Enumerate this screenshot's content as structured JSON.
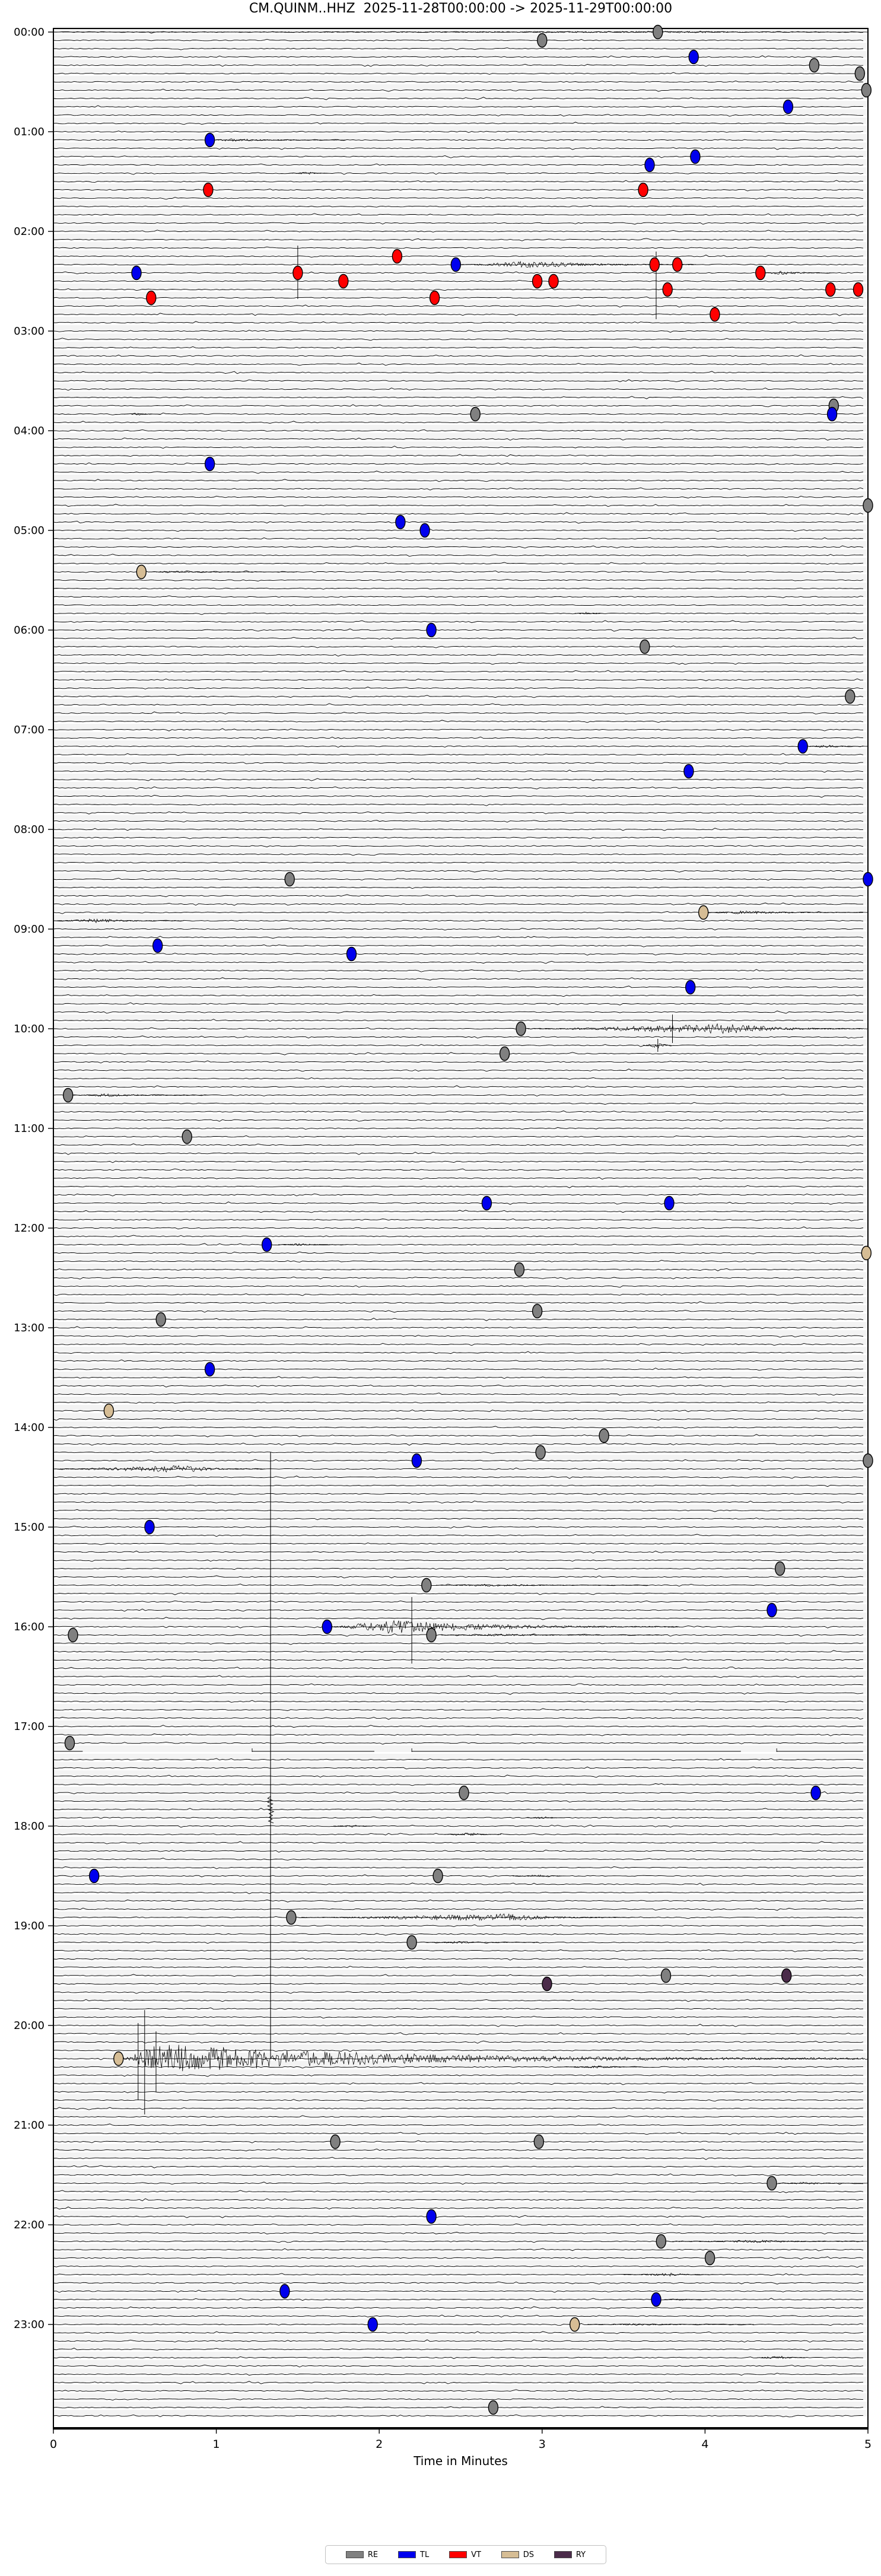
{
  "figure": {
    "title": "CM.QUINM..HHZ  2025-11-28T00:00:00 -> 2025-11-29T00:00:00",
    "xlabel": "Time in Minutes"
  },
  "axes": {
    "x_ticks": [
      "0",
      "1",
      "2",
      "3",
      "4",
      "5"
    ],
    "y_ticks": [
      "00:00",
      "01:00",
      "02:00",
      "03:00",
      "04:00",
      "05:00",
      "06:00",
      "07:00",
      "08:00",
      "09:00",
      "10:00",
      "11:00",
      "12:00",
      "13:00",
      "14:00",
      "15:00",
      "16:00",
      "17:00",
      "18:00",
      "19:00",
      "20:00",
      "21:00",
      "22:00",
      "23:00"
    ]
  },
  "legend": {
    "items": [
      {
        "label": "RE",
        "color": "#808080"
      },
      {
        "label": "TL",
        "color": "#0000ee"
      },
      {
        "label": "VT",
        "color": "#ff0000"
      },
      {
        "label": "DS",
        "color": "#d6bd95"
      },
      {
        "label": "RY",
        "color": "#4b2b4a"
      }
    ]
  },
  "chart_data": {
    "type": "helicorder",
    "station": "CM.QUINM..HHZ",
    "time_start": "2025-11-28T00:00:00",
    "time_end": "2025-11-29T00:00:00",
    "minutes_per_row": 5,
    "rows": 288,
    "x_range_minutes": [
      0,
      5
    ],
    "colors": {
      "RE": "#808080",
      "TL": "#0000ee",
      "VT": "#ff0000",
      "DS": "#d6bd95",
      "RY": "#4b2b4a"
    },
    "markers": [
      {
        "t": "00:00",
        "m": 3.71,
        "k": "RE"
      },
      {
        "t": "00:05",
        "m": 3.0,
        "k": "RE"
      },
      {
        "t": "00:15",
        "m": 3.93,
        "k": "TL"
      },
      {
        "t": "00:20",
        "m": 4.67,
        "k": "RE"
      },
      {
        "t": "00:25",
        "m": 4.95,
        "k": "RE"
      },
      {
        "t": "00:35",
        "m": 4.99,
        "k": "RE"
      },
      {
        "t": "00:45",
        "m": 4.51,
        "k": "TL"
      },
      {
        "t": "01:05",
        "m": 0.96,
        "k": "TL"
      },
      {
        "t": "01:15",
        "m": 3.94,
        "k": "TL"
      },
      {
        "t": "01:20",
        "m": 3.66,
        "k": "TL"
      },
      {
        "t": "01:35",
        "m": 0.95,
        "k": "VT"
      },
      {
        "t": "01:35",
        "m": 3.62,
        "k": "VT"
      },
      {
        "t": "02:15",
        "m": 2.11,
        "k": "VT"
      },
      {
        "t": "02:20",
        "m": 2.47,
        "k": "TL"
      },
      {
        "t": "02:20",
        "m": 3.69,
        "k": "VT"
      },
      {
        "t": "02:20",
        "m": 3.83,
        "k": "VT"
      },
      {
        "t": "02:25",
        "m": 0.51,
        "k": "TL"
      },
      {
        "t": "02:25",
        "m": 1.5,
        "k": "VT"
      },
      {
        "t": "02:25",
        "m": 4.34,
        "k": "VT"
      },
      {
        "t": "02:30",
        "m": 1.78,
        "k": "VT"
      },
      {
        "t": "02:30",
        "m": 2.97,
        "k": "VT"
      },
      {
        "t": "02:30",
        "m": 3.07,
        "k": "VT"
      },
      {
        "t": "02:35",
        "m": 3.77,
        "k": "VT"
      },
      {
        "t": "02:35",
        "m": 4.77,
        "k": "VT"
      },
      {
        "t": "02:35",
        "m": 4.94,
        "k": "VT"
      },
      {
        "t": "02:40",
        "m": 0.6,
        "k": "VT"
      },
      {
        "t": "02:40",
        "m": 2.34,
        "k": "VT"
      },
      {
        "t": "02:50",
        "m": 4.06,
        "k": "VT"
      },
      {
        "t": "03:45",
        "m": 4.79,
        "k": "RE"
      },
      {
        "t": "03:50",
        "m": 2.59,
        "k": "RE"
      },
      {
        "t": "03:50",
        "m": 4.78,
        "k": "TL"
      },
      {
        "t": "04:20",
        "m": 0.96,
        "k": "TL"
      },
      {
        "t": "04:45",
        "m": 5.0,
        "k": "RE"
      },
      {
        "t": "04:55",
        "m": 2.13,
        "k": "TL"
      },
      {
        "t": "05:00",
        "m": 2.28,
        "k": "TL"
      },
      {
        "t": "05:25",
        "m": 0.54,
        "k": "DS"
      },
      {
        "t": "06:00",
        "m": 2.32,
        "k": "TL"
      },
      {
        "t": "06:10",
        "m": 3.63,
        "k": "RE"
      },
      {
        "t": "06:40",
        "m": 4.89,
        "k": "RE"
      },
      {
        "t": "07:10",
        "m": 4.6,
        "k": "TL"
      },
      {
        "t": "07:25",
        "m": 3.9,
        "k": "TL"
      },
      {
        "t": "08:30",
        "m": 1.45,
        "k": "RE"
      },
      {
        "t": "08:30",
        "m": 5.0,
        "k": "TL"
      },
      {
        "t": "08:50",
        "m": 3.99,
        "k": "DS"
      },
      {
        "t": "09:10",
        "m": 0.64,
        "k": "TL"
      },
      {
        "t": "09:15",
        "m": 1.83,
        "k": "TL"
      },
      {
        "t": "09:35",
        "m": 3.91,
        "k": "TL"
      },
      {
        "t": "10:00",
        "m": 2.87,
        "k": "RE"
      },
      {
        "t": "10:15",
        "m": 2.77,
        "k": "RE"
      },
      {
        "t": "10:40",
        "m": 0.09,
        "k": "RE"
      },
      {
        "t": "11:05",
        "m": 0.82,
        "k": "RE"
      },
      {
        "t": "11:45",
        "m": 2.66,
        "k": "TL"
      },
      {
        "t": "11:45",
        "m": 3.78,
        "k": "TL"
      },
      {
        "t": "12:10",
        "m": 1.31,
        "k": "TL"
      },
      {
        "t": "12:15",
        "m": 4.99,
        "k": "DS"
      },
      {
        "t": "12:25",
        "m": 2.86,
        "k": "RE"
      },
      {
        "t": "12:50",
        "m": 2.97,
        "k": "RE"
      },
      {
        "t": "12:55",
        "m": 0.66,
        "k": "RE"
      },
      {
        "t": "13:25",
        "m": 0.96,
        "k": "TL"
      },
      {
        "t": "13:50",
        "m": 0.34,
        "k": "DS"
      },
      {
        "t": "14:05",
        "m": 3.38,
        "k": "RE"
      },
      {
        "t": "14:15",
        "m": 2.99,
        "k": "RE"
      },
      {
        "t": "14:20",
        "m": 2.23,
        "k": "TL"
      },
      {
        "t": "14:20",
        "m": 5.0,
        "k": "RE"
      },
      {
        "t": "15:00",
        "m": 0.59,
        "k": "TL"
      },
      {
        "t": "15:25",
        "m": 4.46,
        "k": "RE"
      },
      {
        "t": "15:35",
        "m": 2.29,
        "k": "RE"
      },
      {
        "t": "15:50",
        "m": 4.41,
        "k": "TL"
      },
      {
        "t": "16:00",
        "m": 1.68,
        "k": "TL"
      },
      {
        "t": "16:05",
        "m": 0.12,
        "k": "RE"
      },
      {
        "t": "16:05",
        "m": 2.32,
        "k": "RE"
      },
      {
        "t": "17:10",
        "m": 0.1,
        "k": "RE"
      },
      {
        "t": "17:40",
        "m": 2.52,
        "k": "RE"
      },
      {
        "t": "17:40",
        "m": 4.68,
        "k": "TL"
      },
      {
        "t": "18:30",
        "m": 0.25,
        "k": "TL"
      },
      {
        "t": "18:30",
        "m": 2.36,
        "k": "RE"
      },
      {
        "t": "18:55",
        "m": 1.46,
        "k": "RE"
      },
      {
        "t": "19:10",
        "m": 2.2,
        "k": "RE"
      },
      {
        "t": "19:30",
        "m": 3.76,
        "k": "RE"
      },
      {
        "t": "19:30",
        "m": 4.5,
        "k": "RY"
      },
      {
        "t": "19:35",
        "m": 3.03,
        "k": "RY"
      },
      {
        "t": "20:20",
        "m": 0.4,
        "k": "DS"
      },
      {
        "t": "21:10",
        "m": 1.73,
        "k": "RE"
      },
      {
        "t": "21:10",
        "m": 2.98,
        "k": "RE"
      },
      {
        "t": "21:35",
        "m": 4.41,
        "k": "RE"
      },
      {
        "t": "21:55",
        "m": 2.32,
        "k": "TL"
      },
      {
        "t": "22:10",
        "m": 3.73,
        "k": "RE"
      },
      {
        "t": "22:20",
        "m": 4.03,
        "k": "RE"
      },
      {
        "t": "22:40",
        "m": 1.42,
        "k": "TL"
      },
      {
        "t": "22:45",
        "m": 3.7,
        "k": "TL"
      },
      {
        "t": "23:00",
        "m": 1.96,
        "k": "TL"
      },
      {
        "t": "23:00",
        "m": 3.2,
        "k": "DS"
      },
      {
        "t": "23:50",
        "m": 2.7,
        "k": "RE"
      }
    ],
    "events": [
      {
        "t": "00:00",
        "m0": 0,
        "m1": 5,
        "a": 1.4,
        "p": 0.8
      },
      {
        "t": "01:05",
        "m0": 0.98,
        "m1": 1.8,
        "a": 2.6,
        "p": 0.12
      },
      {
        "t": "01:25",
        "m0": 1.45,
        "m1": 1.68,
        "a": 2.4,
        "p": 0.5
      },
      {
        "t": "02:20",
        "m0": 2.5,
        "m1": 3.95,
        "a": 6.5,
        "p": 0.3
      },
      {
        "t": "02:25",
        "m0": 4.36,
        "m1": 4.78,
        "a": 3.2,
        "p": 0.25
      },
      {
        "t": "03:50",
        "m0": 0.42,
        "m1": 0.66,
        "a": 2.4,
        "p": 0.4
      },
      {
        "t": "05:25",
        "m0": 0.58,
        "m1": 1.5,
        "a": 1.7,
        "p": 0.12
      },
      {
        "t": "05:50",
        "m0": 3.2,
        "m1": 3.38,
        "a": 3.5,
        "p": 0.5
      },
      {
        "t": "07:10",
        "m0": 4.62,
        "m1": 5,
        "a": 3,
        "p": 0.3
      },
      {
        "t": "08:50",
        "m0": 4.02,
        "m1": 5,
        "a": 3.4,
        "p": 0.2
      },
      {
        "t": "08:55",
        "m0": 0,
        "m1": 0.8,
        "a": 3.8,
        "p": 0.35
      },
      {
        "t": "10:00",
        "m0": 2.91,
        "m1": 5,
        "a": 9,
        "p": 0.6
      },
      {
        "t": "10:10",
        "m0": 3.62,
        "m1": 3.8,
        "a": 5,
        "p": 0.5
      },
      {
        "t": "10:40",
        "m0": 0.12,
        "m1": 0.95,
        "a": 2.8,
        "p": 0.25
      },
      {
        "t": "12:10",
        "m0": 1.38,
        "m1": 1.8,
        "a": 2,
        "p": 0.3
      },
      {
        "t": "14:25",
        "m0": 0,
        "m1": 1.3,
        "a": 6.5,
        "p": 0.62
      },
      {
        "t": "15:35",
        "m0": 2.35,
        "m1": 3.65,
        "a": 2.2,
        "p": 0.25
      },
      {
        "t": "16:00",
        "m0": 1.7,
        "m1": 3.85,
        "a": 13,
        "p": 0.18
      },
      {
        "t": "16:05",
        "m0": 2.38,
        "m1": 3.75,
        "a": 2.2,
        "p": 0.25
      },
      {
        "t": "17:55",
        "m0": 2.9,
        "m1": 3.14,
        "a": 2.4,
        "p": 0.5
      },
      {
        "t": "18:00",
        "m0": 1.72,
        "m1": 1.96,
        "a": 2.4,
        "p": 0.5
      },
      {
        "t": "18:05",
        "m0": 2.4,
        "m1": 2.75,
        "a": 3.2,
        "p": 0.45
      },
      {
        "t": "18:30",
        "m0": 2.82,
        "m1": 3.14,
        "a": 2,
        "p": 0.5
      },
      {
        "t": "18:55",
        "m0": 1.52,
        "m1": 3.55,
        "a": 6.5,
        "p": 0.62
      },
      {
        "t": "19:10",
        "m0": 2.28,
        "m1": 2.98,
        "a": 2,
        "p": 0.3
      },
      {
        "t": "20:20",
        "m0": 0.42,
        "m1": 5,
        "a": 26,
        "p": 0.05
      },
      {
        "t": "20:25",
        "m0": 3.1,
        "m1": 3.62,
        "a": 2.2,
        "p": 0.5
      },
      {
        "t": "21:35",
        "m0": 4.45,
        "m1": 5,
        "a": 2.2,
        "p": 0.3
      },
      {
        "t": "22:10",
        "m0": 3.8,
        "m1": 5,
        "a": 2.4,
        "p": 0.45
      },
      {
        "t": "22:30",
        "m0": 3.5,
        "m1": 4.08,
        "a": 2.8,
        "p": 0.5
      },
      {
        "t": "22:45",
        "m0": 3.75,
        "m1": 3.98,
        "a": 2,
        "p": 0.4
      },
      {
        "t": "23:00",
        "m0": 3.28,
        "m1": 4.3,
        "a": 1.6,
        "p": 0.3
      },
      {
        "t": "23:20",
        "m0": 4.32,
        "m1": 4.62,
        "a": 4,
        "p": 0.45
      }
    ],
    "spikes": [
      {
        "t": "02:20",
        "m": 3.7,
        "up": 22,
        "dn": 92
      },
      {
        "t": "02:25",
        "m": 1.5,
        "up": 46,
        "dn": 44
      },
      {
        "t": "10:00",
        "m": 3.8,
        "up": 24,
        "dn": 24
      },
      {
        "t": "10:10",
        "m": 3.71,
        "up": 11,
        "dn": 11
      },
      {
        "t": "16:00",
        "m": 2.2,
        "up": 50,
        "dn": 62
      },
      {
        "t": "20:20",
        "m": 0.52,
        "up": 60,
        "dn": 70
      },
      {
        "t": "20:20",
        "m": 0.56,
        "up": 82,
        "dn": 94
      },
      {
        "t": "20:20",
        "m": 0.63,
        "up": 46,
        "dn": 56
      }
    ],
    "artifact_line": {
      "x_minute": 1.333,
      "from": "14:15",
      "to": "20:20",
      "blob_from": "17:45",
      "blob_to": "17:55"
    },
    "dropout": {
      "t": "17:15",
      "segments": [
        [
          0,
          0.18
        ],
        [
          1.22,
          1.97
        ],
        [
          2.2,
          4.22
        ],
        [
          4.44,
          4.97
        ]
      ]
    }
  }
}
